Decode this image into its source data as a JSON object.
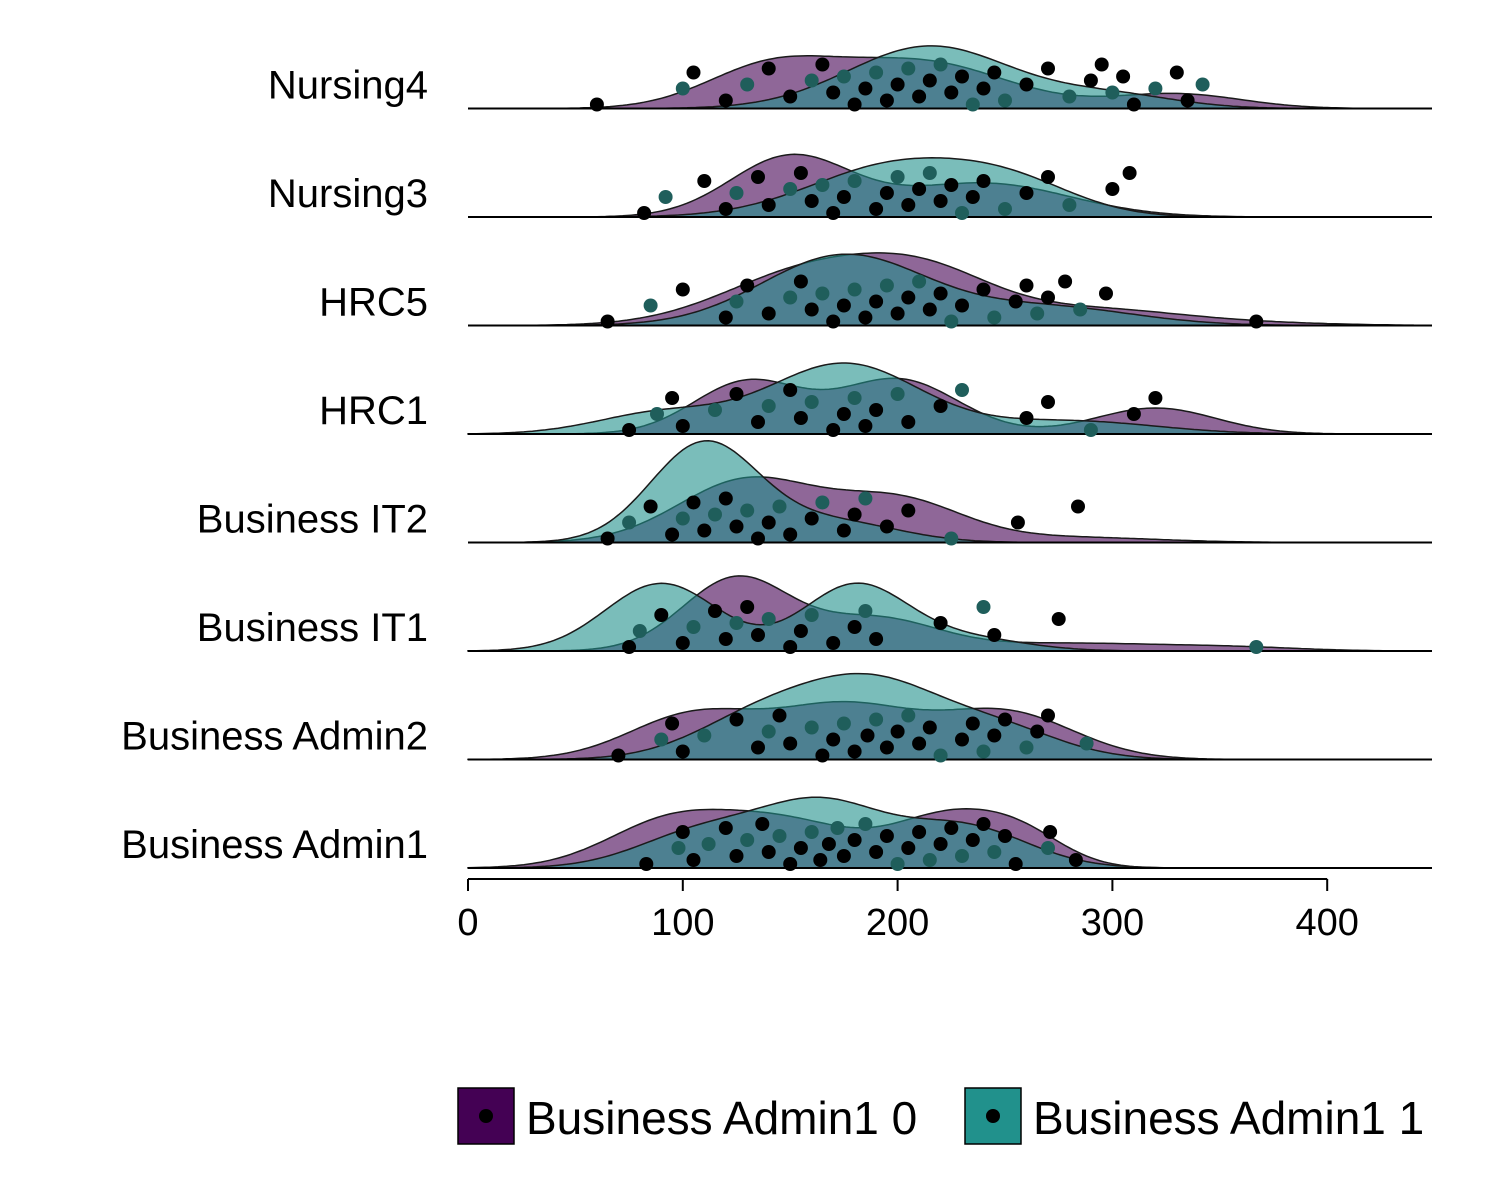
{
  "chart_data": {
    "type": "ridgeline",
    "title": "",
    "xlabel": "",
    "ylabel": "",
    "xlim": [
      0,
      450
    ],
    "x_ticks": [
      0,
      100,
      200,
      300,
      400
    ],
    "x_tick_labels": [
      "0",
      "100",
      "200",
      "300",
      "400"
    ],
    "grid": false,
    "legend_position": "bottom",
    "categories": [
      "Business Admin1",
      "Business Admin2",
      "Business IT1",
      "Business IT2",
      "HRC1",
      "HRC5",
      "Nursing3",
      "Nursing4"
    ],
    "series": [
      {
        "name": "Business Admin1 0",
        "color": "#440154",
        "opacity": 0.6
      },
      {
        "name": "Business Admin1 1",
        "color": "#21918c",
        "opacity": 0.6
      }
    ],
    "point_color": "#000000",
    "density_peaks": {
      "Business Admin1": [
        [
          [
            95,
            0.9,
            30
          ],
          [
            150,
            0.8,
            30
          ],
          [
            225,
            1.0,
            28
          ],
          [
            260,
            0.4,
            20
          ]
        ],
        [
          [
            110,
            0.7,
            30
          ],
          [
            165,
            1.15,
            28
          ],
          [
            230,
            0.8,
            30
          ]
        ]
      ],
      "Business Admin2": [
        [
          [
            105,
            0.85,
            30
          ],
          [
            175,
            1.0,
            32
          ],
          [
            250,
            0.9,
            32
          ]
        ],
        [
          [
            140,
            0.9,
            32
          ],
          [
            190,
            1.25,
            30
          ],
          [
            245,
            0.6,
            30
          ]
        ]
      ],
      "Business IT1": [
        [
          [
            125,
            1.4,
            25
          ],
          [
            190,
            0.6,
            28
          ],
          [
            280,
            0.15,
            50
          ],
          [
            360,
            0.05,
            30
          ]
        ],
        [
          [
            90,
            1.3,
            26
          ],
          [
            180,
            1.25,
            24
          ],
          [
            230,
            0.25,
            28
          ]
        ]
      ],
      "Business IT2": [
        [
          [
            130,
            1.2,
            32
          ],
          [
            200,
            0.8,
            30
          ],
          [
            280,
            0.1,
            40
          ]
        ],
        [
          [
            110,
            1.9,
            25
          ],
          [
            170,
            0.4,
            30
          ]
        ]
      ],
      "HRC1": [
        [
          [
            130,
            1.0,
            25
          ],
          [
            200,
            1.05,
            28
          ],
          [
            320,
            0.5,
            28
          ]
        ],
        [
          [
            90,
            0.4,
            30
          ],
          [
            175,
            1.35,
            35
          ],
          [
            280,
            0.25,
            40
          ]
        ]
      ],
      "HRC5": [
        [
          [
            160,
            1.05,
            40
          ],
          [
            215,
            0.8,
            32
          ],
          [
            290,
            0.3,
            40
          ],
          [
            360,
            0.05,
            40
          ]
        ],
        [
          [
            175,
            1.35,
            38
          ],
          [
            270,
            0.35,
            40
          ]
        ]
      ],
      "Nursing3": [
        [
          [
            150,
            1.15,
            28
          ],
          [
            240,
            0.65,
            40
          ]
        ],
        [
          [
            200,
            1.0,
            40
          ],
          [
            255,
            0.5,
            30
          ]
        ]
      ],
      "Nursing4": [
        [
          [
            140,
            0.75,
            30
          ],
          [
            210,
            0.9,
            40
          ],
          [
            330,
            0.28,
            30
          ]
        ],
        [
          [
            215,
            1.2,
            38
          ],
          [
            300,
            0.25,
            30
          ]
        ]
      ]
    },
    "points": {
      "Business Admin1": [
        83,
        98,
        100,
        105,
        112,
        120,
        125,
        130,
        137,
        140,
        145,
        150,
        155,
        160,
        164,
        168,
        172,
        175,
        180,
        185,
        190,
        195,
        200,
        205,
        210,
        215,
        220,
        225,
        230,
        235,
        240,
        245,
        250,
        255,
        270,
        271,
        283
      ],
      "Business Admin2": [
        70,
        90,
        95,
        100,
        110,
        125,
        135,
        140,
        145,
        150,
        160,
        165,
        170,
        175,
        180,
        186,
        190,
        195,
        200,
        205,
        210,
        215,
        220,
        230,
        235,
        240,
        245,
        250,
        260,
        265,
        270,
        288
      ],
      "Business IT1": [
        75,
        80,
        90,
        100,
        105,
        115,
        120,
        125,
        130,
        135,
        140,
        150,
        155,
        160,
        170,
        180,
        185,
        190,
        220,
        240,
        245,
        275,
        367
      ],
      "Business IT2": [
        65,
        75,
        85,
        95,
        100,
        105,
        110,
        115,
        120,
        125,
        130,
        135,
        140,
        145,
        150,
        160,
        165,
        175,
        180,
        185,
        195,
        205,
        225,
        256,
        284
      ],
      "HRC1": [
        75,
        88,
        95,
        100,
        115,
        125,
        135,
        140,
        150,
        155,
        160,
        170,
        175,
        180,
        185,
        190,
        200,
        205,
        220,
        230,
        260,
        270,
        290,
        310,
        320
      ],
      "HRC5": [
        65,
        85,
        100,
        120,
        125,
        130,
        140,
        150,
        155,
        160,
        165,
        170,
        175,
        180,
        185,
        190,
        195,
        200,
        205,
        210,
        215,
        220,
        225,
        230,
        240,
        245,
        255,
        260,
        265,
        270,
        278,
        285,
        297,
        367
      ],
      "Nursing3": [
        82,
        92,
        110,
        120,
        125,
        135,
        140,
        150,
        155,
        160,
        165,
        170,
        175,
        180,
        190,
        195,
        200,
        205,
        210,
        215,
        220,
        225,
        230,
        235,
        240,
        250,
        260,
        270,
        280,
        300,
        308
      ],
      "Nursing4": [
        60,
        100,
        105,
        120,
        130,
        140,
        150,
        160,
        165,
        170,
        175,
        180,
        185,
        190,
        195,
        200,
        205,
        210,
        215,
        220,
        225,
        230,
        235,
        240,
        245,
        250,
        260,
        270,
        280,
        290,
        295,
        300,
        305,
        310,
        320,
        330,
        335,
        342
      ]
    }
  }
}
